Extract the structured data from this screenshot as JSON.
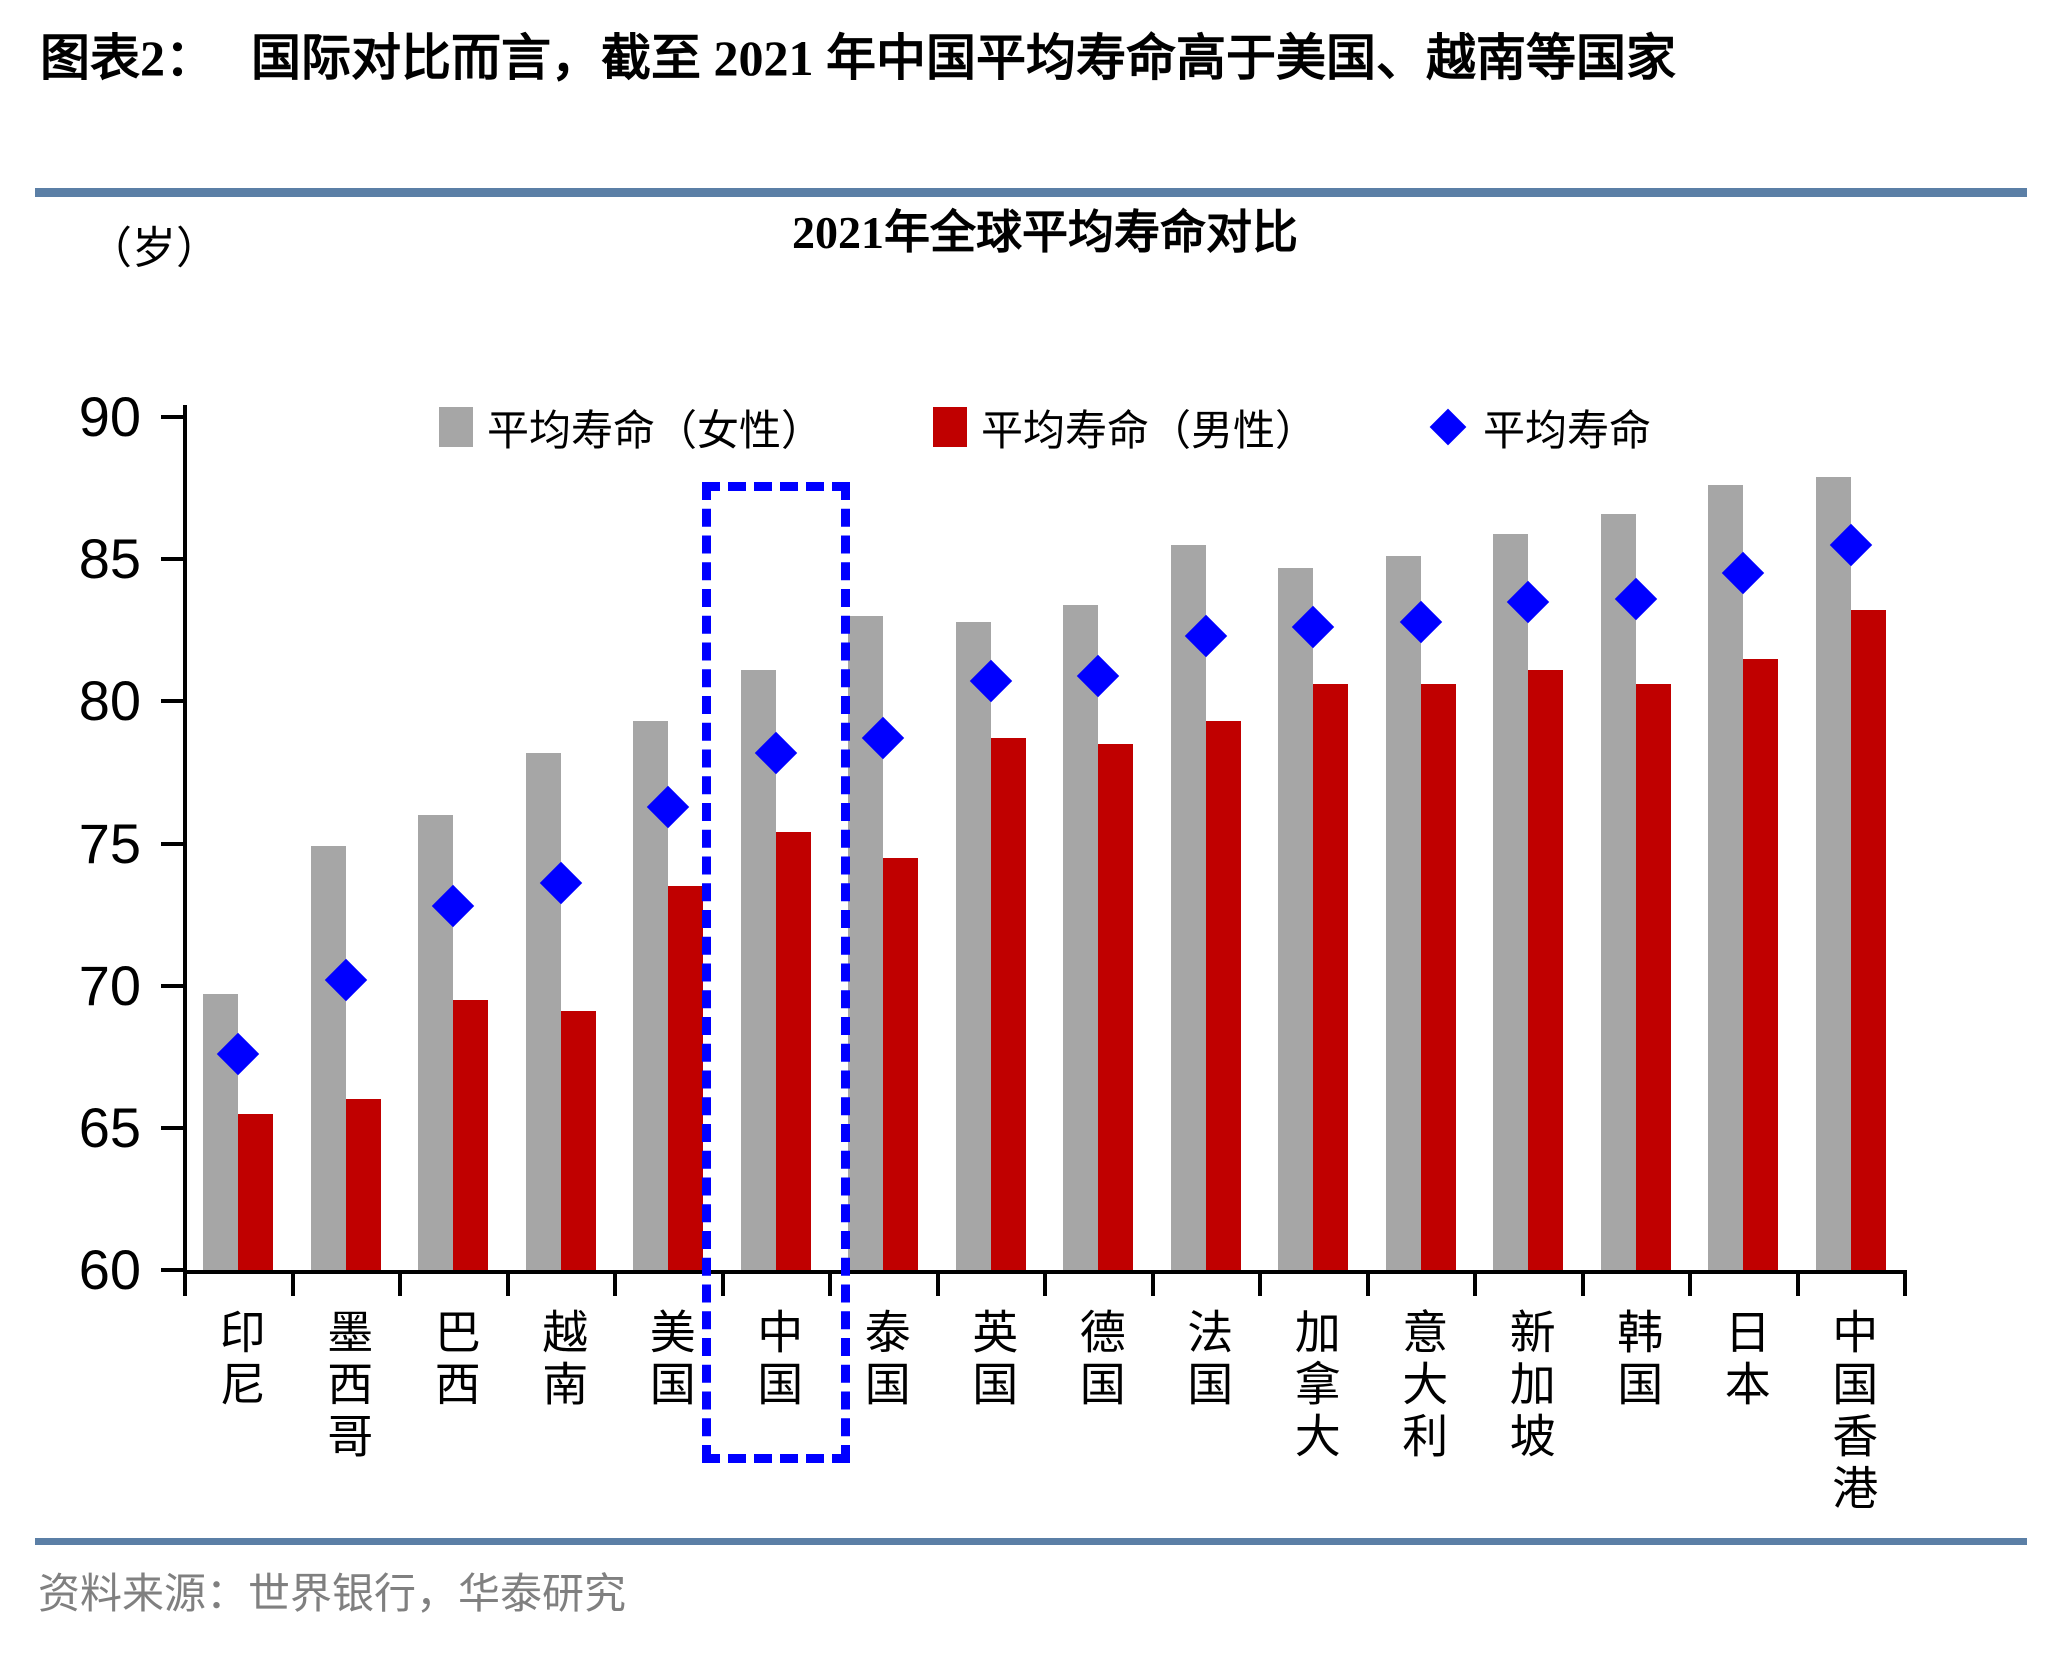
{
  "report": {
    "figure_label": "图表2：",
    "title_text": "国际对比而言，截至 2021 年中国平均寿命高于美国、越南等国家",
    "source": "资料来源：世界银行，华泰研究"
  },
  "chart_data": {
    "type": "bar",
    "title": "2021年全球平均寿命对比",
    "y_unit": "（岁）",
    "xlabel": "",
    "ylabel": "岁",
    "ylim": [
      60,
      90
    ],
    "ytick_step": 5,
    "yticks": [
      60,
      65,
      70,
      75,
      80,
      85,
      90
    ],
    "grid": false,
    "legend_position": "top",
    "categories": [
      "印尼",
      "墨西哥",
      "巴西",
      "越南",
      "美国",
      "中国",
      "泰国",
      "英国",
      "德国",
      "法国",
      "加拿大",
      "意大利",
      "新加坡",
      "韩国",
      "日本",
      "中国香港"
    ],
    "series": [
      {
        "name": "平均寿命（女性）",
        "type": "bar",
        "color": "#a6a6a6",
        "values": [
          69.7,
          74.9,
          76.0,
          78.2,
          79.3,
          81.1,
          83.0,
          82.8,
          83.4,
          85.5,
          84.7,
          85.1,
          85.9,
          86.6,
          87.6,
          87.9
        ]
      },
      {
        "name": "平均寿命（男性）",
        "type": "bar",
        "color": "#c00000",
        "values": [
          65.5,
          66.0,
          69.5,
          69.1,
          73.5,
          75.4,
          74.5,
          78.7,
          78.5,
          79.3,
          80.6,
          80.6,
          81.1,
          80.6,
          81.5,
          83.2
        ]
      },
      {
        "name": "平均寿命",
        "type": "scatter-diamond",
        "color": "#0000ff",
        "values": [
          67.6,
          70.2,
          72.8,
          73.6,
          76.3,
          78.2,
          78.7,
          80.7,
          80.9,
          82.3,
          82.6,
          82.8,
          83.5,
          83.6,
          84.5,
          85.5
        ]
      }
    ],
    "highlight": {
      "category": "中国",
      "style": "blue-dashed-box",
      "color": "#0000ff"
    }
  },
  "colors": {
    "divider": "#5b7fa6",
    "axis": "#000000",
    "source_text": "#808080"
  }
}
